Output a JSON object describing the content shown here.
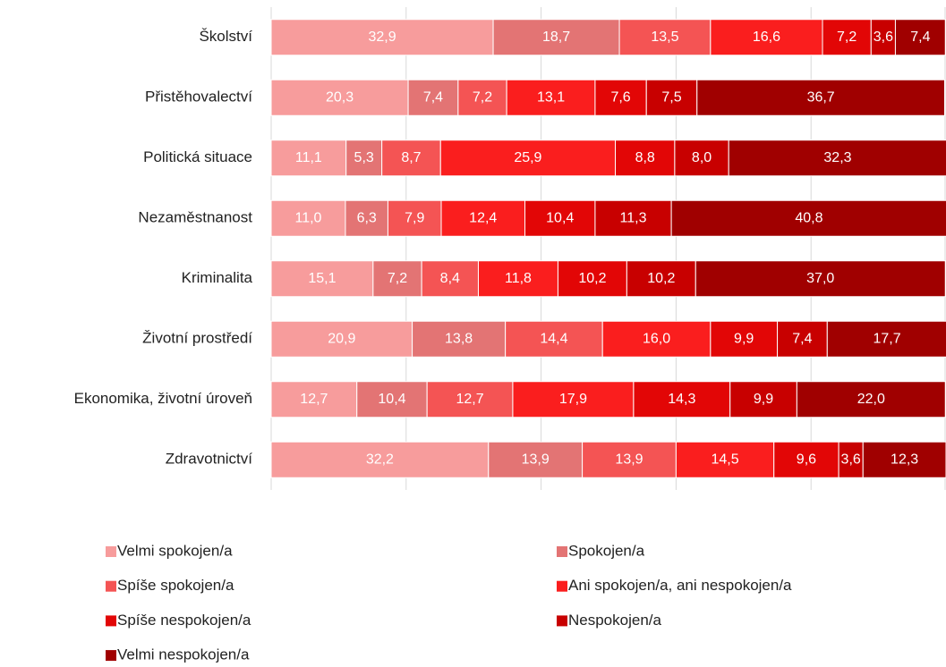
{
  "chart_data": {
    "type": "stacked-barh",
    "categories": [
      "Školství",
      "Přistěhovalectví",
      "Politická situace",
      "Nezaměstnanost",
      "Kriminalita",
      "Životní prostředí",
      "Ekonomika, životní úroveň",
      "Zdravotnictví"
    ],
    "series": [
      {
        "name": "Velmi spokojen/a",
        "color": "#f79c9c",
        "values": [
          32.9,
          20.3,
          11.1,
          11.0,
          15.1,
          20.9,
          12.7,
          32.2
        ],
        "value_labels": [
          "32,9",
          "20,3",
          "11,1",
          "11,0",
          "15,1",
          "20,9",
          "12,7",
          "32,2"
        ]
      },
      {
        "name": "Spokojen/a",
        "color": "#e37474",
        "values": [
          18.7,
          7.4,
          5.3,
          6.3,
          7.2,
          13.8,
          10.4,
          13.9
        ],
        "value_labels": [
          "18,7",
          "7,4",
          "5,3",
          "6,3",
          "7,2",
          "13,8",
          "10,4",
          "13,9"
        ]
      },
      {
        "name": "Spíše spokojen/a",
        "color": "#f45454",
        "values": [
          13.5,
          7.2,
          8.7,
          7.9,
          8.4,
          14.4,
          12.7,
          13.9
        ],
        "value_labels": [
          "13,5",
          "7,2",
          "8,7",
          "7,9",
          "8,4",
          "14,4",
          "12,7",
          "13,9"
        ]
      },
      {
        "name": "Ani spokojen/a, ani nespokojen/a",
        "color": "#fa1e1e",
        "values": [
          16.6,
          13.1,
          25.9,
          12.4,
          11.8,
          16.0,
          17.9,
          14.5
        ],
        "value_labels": [
          "16,6",
          "13,1",
          "25,9",
          "12,4",
          "11,8",
          "16,0",
          "17,9",
          "14,5"
        ]
      },
      {
        "name": "Spíše nespokojen/a",
        "color": "#e20606",
        "values": [
          7.2,
          7.6,
          8.8,
          10.4,
          10.2,
          9.9,
          14.3,
          9.6
        ],
        "value_labels": [
          "7,2",
          "7,6",
          "8,8",
          "10,4",
          "10,2",
          "9,9",
          "14,3",
          "9,6"
        ]
      },
      {
        "name": "Nespokojen/a",
        "color": "#c80000",
        "values": [
          3.6,
          7.5,
          8.0,
          11.3,
          10.2,
          7.4,
          9.9,
          3.6
        ],
        "value_labels": [
          "3,6",
          "7,5",
          "8,0",
          "11,3",
          "10,2",
          "7,4",
          "9,9",
          "3,6"
        ]
      },
      {
        "name": "Velmi nespokojen/a",
        "color": "#a00000",
        "values": [
          7.4,
          36.7,
          32.3,
          40.8,
          37.0,
          17.7,
          22.0,
          12.3
        ],
        "value_labels": [
          "7,4",
          "36,7",
          "32,3",
          "40,8",
          "37,0",
          "17,7",
          "22,0",
          "12,3"
        ]
      }
    ],
    "xlim": [
      0,
      100
    ],
    "xticks": [
      0,
      20,
      40,
      60,
      80,
      100
    ],
    "grid": true
  }
}
